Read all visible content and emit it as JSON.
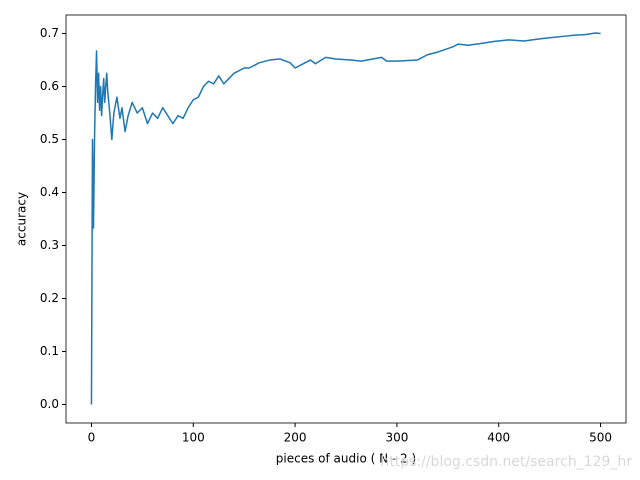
{
  "chart_data": {
    "type": "line",
    "xlabel": "pieces of audio ( N - 2 )",
    "ylabel": "accuracy",
    "watermark": "https://blog.csdn.net/search_129_hr",
    "xlim": [
      -25,
      525
    ],
    "ylim": [
      -0.035,
      0.735
    ],
    "xticks": [
      0,
      100,
      200,
      300,
      400,
      500
    ],
    "yticks": [
      {
        "value": 0,
        "label": "0.0"
      },
      0.1,
      0.2,
      0.3,
      0.4,
      0.5,
      0.6,
      0.7
    ],
    "series": [
      {
        "color": "#1f77b4",
        "x": [
          0,
          1,
          2,
          3,
          4,
          5,
          6,
          7,
          8,
          9,
          10,
          11,
          12,
          13,
          14,
          15,
          16,
          18,
          20,
          22,
          25,
          28,
          30,
          33,
          36,
          40,
          45,
          50,
          55,
          60,
          65,
          70,
          75,
          80,
          85,
          90,
          95,
          100,
          105,
          110,
          115,
          120,
          125,
          130,
          135,
          140,
          150,
          155,
          165,
          175,
          185,
          195,
          200,
          210,
          215,
          220,
          230,
          240,
          255,
          265,
          285,
          290,
          300,
          320,
          330,
          340,
          355,
          360,
          370,
          385,
          395,
          410,
          425,
          440,
          450,
          465,
          475,
          485,
          495,
          500
        ],
        "values": [
          0,
          0.5,
          0.333,
          0.5,
          0.6,
          0.667,
          0.57,
          0.625,
          0.555,
          0.6,
          0.545,
          0.583,
          0.615,
          0.57,
          0.6,
          0.625,
          0.59,
          0.55,
          0.5,
          0.55,
          0.58,
          0.54,
          0.56,
          0.515,
          0.545,
          0.57,
          0.55,
          0.56,
          0.53,
          0.55,
          0.54,
          0.56,
          0.545,
          0.53,
          0.545,
          0.54,
          0.56,
          0.575,
          0.58,
          0.6,
          0.61,
          0.605,
          0.62,
          0.605,
          0.615,
          0.625,
          0.635,
          0.635,
          0.645,
          0.65,
          0.652,
          0.645,
          0.635,
          0.645,
          0.65,
          0.643,
          0.655,
          0.652,
          0.65,
          0.648,
          0.655,
          0.648,
          0.648,
          0.65,
          0.66,
          0.665,
          0.675,
          0.68,
          0.678,
          0.682,
          0.685,
          0.688,
          0.686,
          0.69,
          0.692,
          0.695,
          0.697,
          0.698,
          0.701,
          0.7
        ]
      }
    ]
  }
}
